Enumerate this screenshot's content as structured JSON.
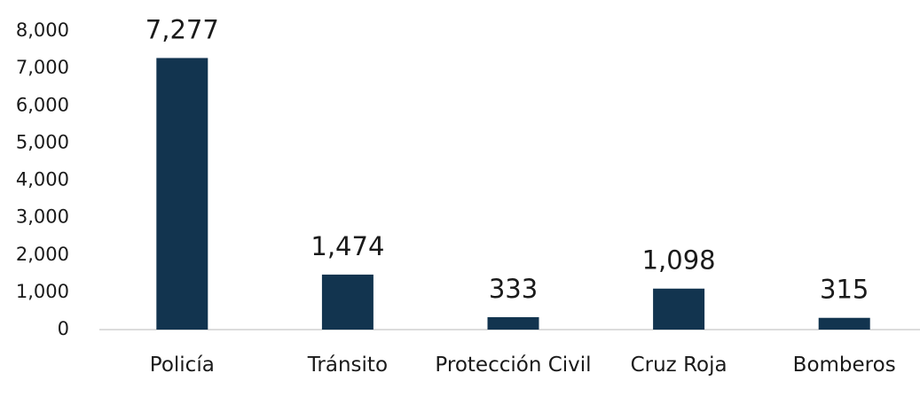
{
  "chart_data": {
    "type": "bar",
    "categories": [
      "Policía",
      "Tránsito",
      "Protección Civil",
      "Cruz Roja",
      "Bomberos"
    ],
    "values": [
      7277,
      1474,
      333,
      1098,
      315
    ],
    "value_labels": [
      "7,277",
      "1,474",
      "333",
      "1,098",
      "315"
    ],
    "color": "#12344f",
    "ylim": [
      0,
      8000
    ],
    "yticks": [
      0,
      {
        "value": 1000,
        "label": "1,000"
      },
      {
        "value": 2000,
        "label": "2,000"
      },
      {
        "value": 3000,
        "label": "3,000"
      },
      {
        "value": 4000,
        "label": "4,000"
      },
      {
        "value": 5000,
        "label": "5,000"
      },
      {
        "value": 6000,
        "label": "6,000"
      },
      {
        "value": 7000,
        "label": "7,000"
      },
      {
        "value": 8000,
        "label": "8,000"
      }
    ],
    "grid": false
  }
}
